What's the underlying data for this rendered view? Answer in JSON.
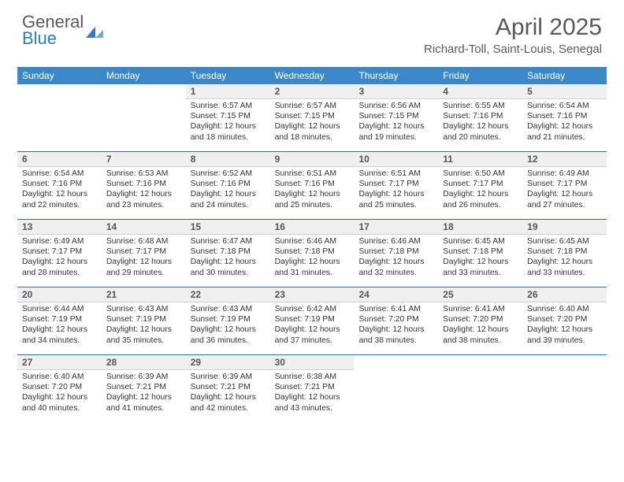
{
  "brand": {
    "line1": "General",
    "line2": "Blue",
    "mark_color": "#2f7ac0",
    "text_color": "#595959"
  },
  "title": "April 2025",
  "subtitle": "Richard-Toll, Saint-Louis, Senegal",
  "colors": {
    "header_bg": "#3b87c8",
    "header_text": "#ffffff",
    "daynum_bg": "#efefef",
    "week_sep": "#2f6aa3",
    "body_text": "#333333",
    "background": "#ffffff"
  },
  "weekdays": [
    "Sunday",
    "Monday",
    "Tuesday",
    "Wednesday",
    "Thursday",
    "Friday",
    "Saturday"
  ],
  "weeks": [
    [
      null,
      null,
      {
        "n": "1",
        "sr": "6:57 AM",
        "ss": "7:15 PM",
        "dl": "12 hours and 18 minutes."
      },
      {
        "n": "2",
        "sr": "6:57 AM",
        "ss": "7:15 PM",
        "dl": "12 hours and 18 minutes."
      },
      {
        "n": "3",
        "sr": "6:56 AM",
        "ss": "7:15 PM",
        "dl": "12 hours and 19 minutes."
      },
      {
        "n": "4",
        "sr": "6:55 AM",
        "ss": "7:16 PM",
        "dl": "12 hours and 20 minutes."
      },
      {
        "n": "5",
        "sr": "6:54 AM",
        "ss": "7:16 PM",
        "dl": "12 hours and 21 minutes."
      }
    ],
    [
      {
        "n": "6",
        "sr": "6:54 AM",
        "ss": "7:16 PM",
        "dl": "12 hours and 22 minutes."
      },
      {
        "n": "7",
        "sr": "6:53 AM",
        "ss": "7:16 PM",
        "dl": "12 hours and 23 minutes."
      },
      {
        "n": "8",
        "sr": "6:52 AM",
        "ss": "7:16 PM",
        "dl": "12 hours and 24 minutes."
      },
      {
        "n": "9",
        "sr": "6:51 AM",
        "ss": "7:16 PM",
        "dl": "12 hours and 25 minutes."
      },
      {
        "n": "10",
        "sr": "6:51 AM",
        "ss": "7:17 PM",
        "dl": "12 hours and 25 minutes."
      },
      {
        "n": "11",
        "sr": "6:50 AM",
        "ss": "7:17 PM",
        "dl": "12 hours and 26 minutes."
      },
      {
        "n": "12",
        "sr": "6:49 AM",
        "ss": "7:17 PM",
        "dl": "12 hours and 27 minutes."
      }
    ],
    [
      {
        "n": "13",
        "sr": "6:49 AM",
        "ss": "7:17 PM",
        "dl": "12 hours and 28 minutes."
      },
      {
        "n": "14",
        "sr": "6:48 AM",
        "ss": "7:17 PM",
        "dl": "12 hours and 29 minutes."
      },
      {
        "n": "15",
        "sr": "6:47 AM",
        "ss": "7:18 PM",
        "dl": "12 hours and 30 minutes."
      },
      {
        "n": "16",
        "sr": "6:46 AM",
        "ss": "7:18 PM",
        "dl": "12 hours and 31 minutes."
      },
      {
        "n": "17",
        "sr": "6:46 AM",
        "ss": "7:18 PM",
        "dl": "12 hours and 32 minutes."
      },
      {
        "n": "18",
        "sr": "6:45 AM",
        "ss": "7:18 PM",
        "dl": "12 hours and 33 minutes."
      },
      {
        "n": "19",
        "sr": "6:45 AM",
        "ss": "7:18 PM",
        "dl": "12 hours and 33 minutes."
      }
    ],
    [
      {
        "n": "20",
        "sr": "6:44 AM",
        "ss": "7:19 PM",
        "dl": "12 hours and 34 minutes."
      },
      {
        "n": "21",
        "sr": "6:43 AM",
        "ss": "7:19 PM",
        "dl": "12 hours and 35 minutes."
      },
      {
        "n": "22",
        "sr": "6:43 AM",
        "ss": "7:19 PM",
        "dl": "12 hours and 36 minutes."
      },
      {
        "n": "23",
        "sr": "6:42 AM",
        "ss": "7:19 PM",
        "dl": "12 hours and 37 minutes."
      },
      {
        "n": "24",
        "sr": "6:41 AM",
        "ss": "7:20 PM",
        "dl": "12 hours and 38 minutes."
      },
      {
        "n": "25",
        "sr": "6:41 AM",
        "ss": "7:20 PM",
        "dl": "12 hours and 38 minutes."
      },
      {
        "n": "26",
        "sr": "6:40 AM",
        "ss": "7:20 PM",
        "dl": "12 hours and 39 minutes."
      }
    ],
    [
      {
        "n": "27",
        "sr": "6:40 AM",
        "ss": "7:20 PM",
        "dl": "12 hours and 40 minutes."
      },
      {
        "n": "28",
        "sr": "6:39 AM",
        "ss": "7:21 PM",
        "dl": "12 hours and 41 minutes."
      },
      {
        "n": "29",
        "sr": "6:39 AM",
        "ss": "7:21 PM",
        "dl": "12 hours and 42 minutes."
      },
      {
        "n": "30",
        "sr": "6:38 AM",
        "ss": "7:21 PM",
        "dl": "12 hours and 43 minutes."
      },
      null,
      null,
      null
    ]
  ],
  "labels": {
    "sunrise": "Sunrise:",
    "sunset": "Sunset:",
    "daylight": "Daylight:"
  }
}
